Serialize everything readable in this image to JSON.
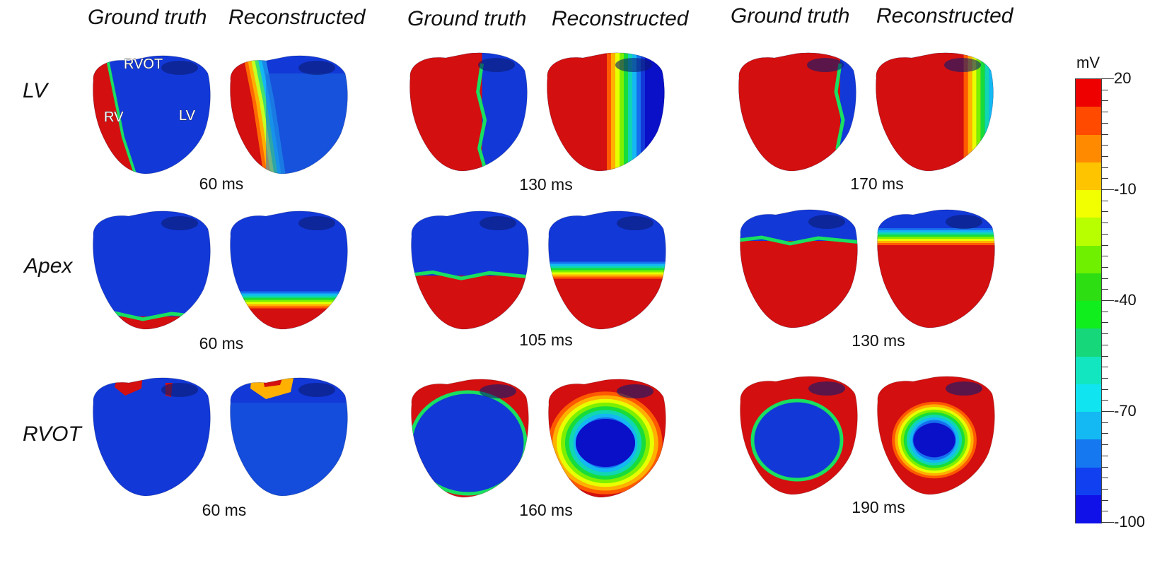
{
  "column_headers": [
    "Ground truth",
    "Reconstructed",
    "Ground truth",
    "Reconstructed",
    "Ground truth",
    "Reconstructed"
  ],
  "row_labels": [
    "LV",
    "Apex",
    "RVOT"
  ],
  "time_labels": [
    [
      "60 ms",
      "130 ms",
      "170 ms"
    ],
    [
      "60 ms",
      "105 ms",
      "130 ms"
    ],
    [
      "60 ms",
      "160 ms",
      "190 ms"
    ]
  ],
  "annotations": [
    "RVOT",
    "RV",
    "LV"
  ],
  "colorbar": {
    "unit": "mV",
    "tick_labels": [
      "20",
      "-10",
      "-40",
      "-70",
      "-100"
    ],
    "range": [
      -100,
      20
    ],
    "colors": [
      "#ee0000",
      "#ff4a00",
      "#ff8a00",
      "#ffc400",
      "#f2ff00",
      "#b8ff00",
      "#6ef000",
      "#2cde12",
      "#11ee1e",
      "#16d77a",
      "#12e6c0",
      "#10e4f0",
      "#14b8f2",
      "#1678f0",
      "#1040f0",
      "#1010e8"
    ]
  },
  "heart_maps": {
    "row1": [
      {
        "type": "lv_gt"
      },
      {
        "type": "lv_rec"
      },
      {
        "type": "split_gt",
        "red_fraction": 0.62
      },
      {
        "type": "split_rec",
        "red_fraction": 0.6
      },
      {
        "type": "split_gt",
        "red_fraction": 0.85
      },
      {
        "type": "split_rec",
        "red_fraction": 0.82
      }
    ],
    "row2": [
      {
        "type": "apex_gt",
        "red_fraction": 0.12
      },
      {
        "type": "apex_rec",
        "red_fraction": 0.18
      },
      {
        "type": "apex_gt",
        "red_fraction": 0.45
      },
      {
        "type": "apex_rec",
        "red_fraction": 0.42
      },
      {
        "type": "apex_gt",
        "red_fraction": 0.72
      },
      {
        "type": "apex_rec",
        "red_fraction": 0.68
      }
    ],
    "row3": [
      {
        "type": "rvot_gt"
      },
      {
        "type": "rvot_rec"
      },
      {
        "type": "rim_gt",
        "rim": 0.1
      },
      {
        "type": "rim_rec",
        "rim": 0.15
      },
      {
        "type": "rim_gt",
        "rim": 0.3
      },
      {
        "type": "rim_rec",
        "rim": 0.4
      }
    ]
  }
}
